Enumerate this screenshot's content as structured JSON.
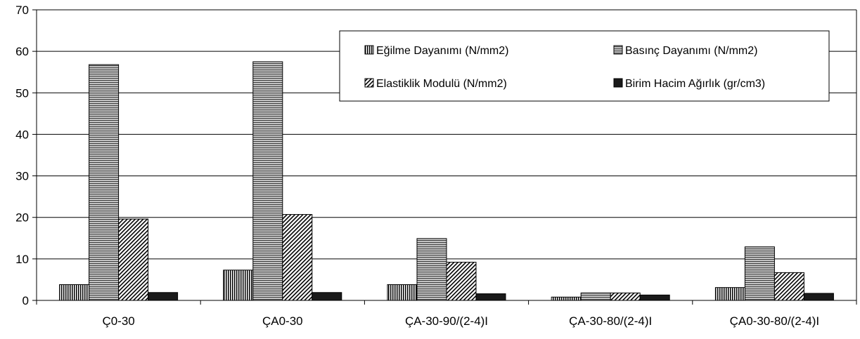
{
  "chart_data": {
    "type": "bar",
    "title": "",
    "xlabel": "",
    "ylabel": "",
    "ylim": [
      0,
      70
    ],
    "yticks": [
      0,
      10,
      20,
      30,
      40,
      50,
      60,
      70
    ],
    "grid": true,
    "legend_position": "top-right",
    "categories": [
      "Ç0-30",
      "ÇA0-30",
      "ÇA-30-90/(2-4)I",
      "ÇA-30-80/(2-4)I",
      "ÇA0-30-80/(2-4)I"
    ],
    "series": [
      {
        "name": "Eğilme Dayanımı (N/mm2)",
        "values": [
          3.8,
          7.3,
          3.8,
          0.8,
          3.1
        ],
        "pattern": "vertical-lines"
      },
      {
        "name": "Basınç Dayanımı (N/mm2)",
        "values": [
          56.8,
          57.5,
          14.9,
          1.8,
          12.9
        ],
        "pattern": "horizontal-lines"
      },
      {
        "name": "Elastiklik Modulü (N/mm2)",
        "values": [
          19.6,
          20.7,
          9.2,
          1.8,
          6.7
        ],
        "pattern": "diagonal-lines"
      },
      {
        "name": "Birim Hacim Ağırlık (gr/cm3)",
        "values": [
          1.9,
          1.9,
          1.6,
          1.3,
          1.7
        ],
        "pattern": "solid-dark"
      }
    ],
    "colors": {
      "gridline": "#000000",
      "bar_stroke": "#000000",
      "dark_fill": "#1a1a1a"
    }
  }
}
